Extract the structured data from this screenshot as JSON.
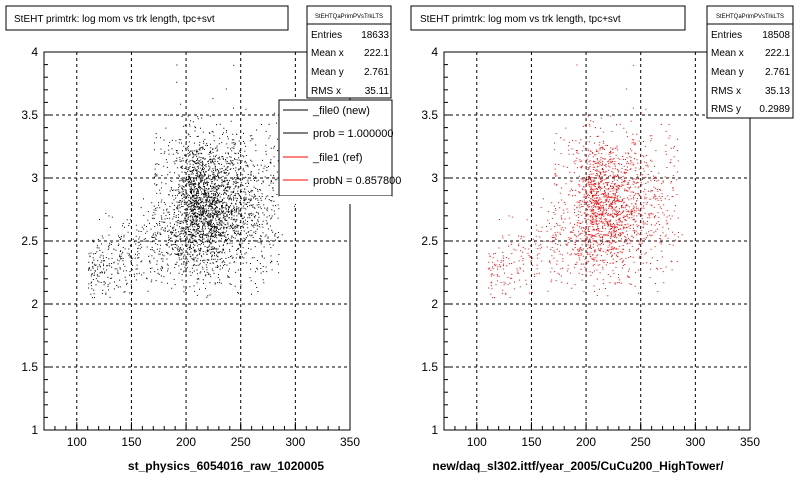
{
  "panels": [
    {
      "title": "StEHT primtrk: log mom vs trk length, tpc+svt",
      "xlabel": "st_physics_6054016_raw_1020005",
      "stats": {
        "name": "StEHTQaPrimPVsTrkLTS",
        "rows": [
          {
            "label": "Entries",
            "value": "18633"
          },
          {
            "label": "Mean x",
            "value": "222.1"
          },
          {
            "label": "Mean y",
            "value": "2.761"
          },
          {
            "label": "RMS x",
            "value": "35.11"
          }
        ]
      },
      "legend": [
        {
          "label": "_file0 (new)",
          "color": "#000000"
        },
        {
          "label": "prob = 1.000000",
          "color": "#000000"
        },
        {
          "label": "_file1 (ref)",
          "color": "#ff0000"
        },
        {
          "label": "probN = 0.857800",
          "color": "#ff0000"
        }
      ]
    },
    {
      "title": "StEHT primtrk: log mom vs trk length, tpc+svt",
      "xlabel": "new/daq_sl302.ittf/year_2005/CuCu200_HighTower/",
      "stats": {
        "name": "StEHTQaPrimPVsTrkLTS",
        "rows": [
          {
            "label": "Entries",
            "value": "18508"
          },
          {
            "label": "Mean x",
            "value": "222.1"
          },
          {
            "label": "Mean y",
            "value": "2.761"
          },
          {
            "label": "RMS x",
            "value": "35.13"
          },
          {
            "label": "RMS y",
            "value": "0.2989"
          }
        ]
      }
    }
  ],
  "chart_data": [
    {
      "type": "scatter",
      "series": [
        {
          "name": "_file0 (new)",
          "color": "#000000",
          "entries": 18633,
          "mean_x": 222.1,
          "mean_y": 2.761,
          "rms_x": 35.11
        }
      ],
      "xlim": [
        70,
        350
      ],
      "ylim": [
        1,
        4
      ],
      "xticks": [
        100,
        150,
        200,
        250,
        300,
        350
      ],
      "yticks": [
        1,
        1.5,
        2,
        2.5,
        3,
        3.5,
        4
      ],
      "grid": true
    },
    {
      "type": "scatter",
      "series": [
        {
          "name": "_file1 (ref)",
          "color": "#ff0000",
          "entries": 18508,
          "mean_x": 222.1,
          "mean_y": 2.761,
          "rms_x": 35.13,
          "rms_y": 0.2989
        }
      ],
      "xlim": [
        70,
        350
      ],
      "ylim": [
        1,
        4
      ],
      "xticks": [
        100,
        150,
        200,
        250,
        300,
        350
      ],
      "yticks": [
        1,
        1.5,
        2,
        2.5,
        3,
        3.5,
        4
      ],
      "grid": true
    }
  ]
}
